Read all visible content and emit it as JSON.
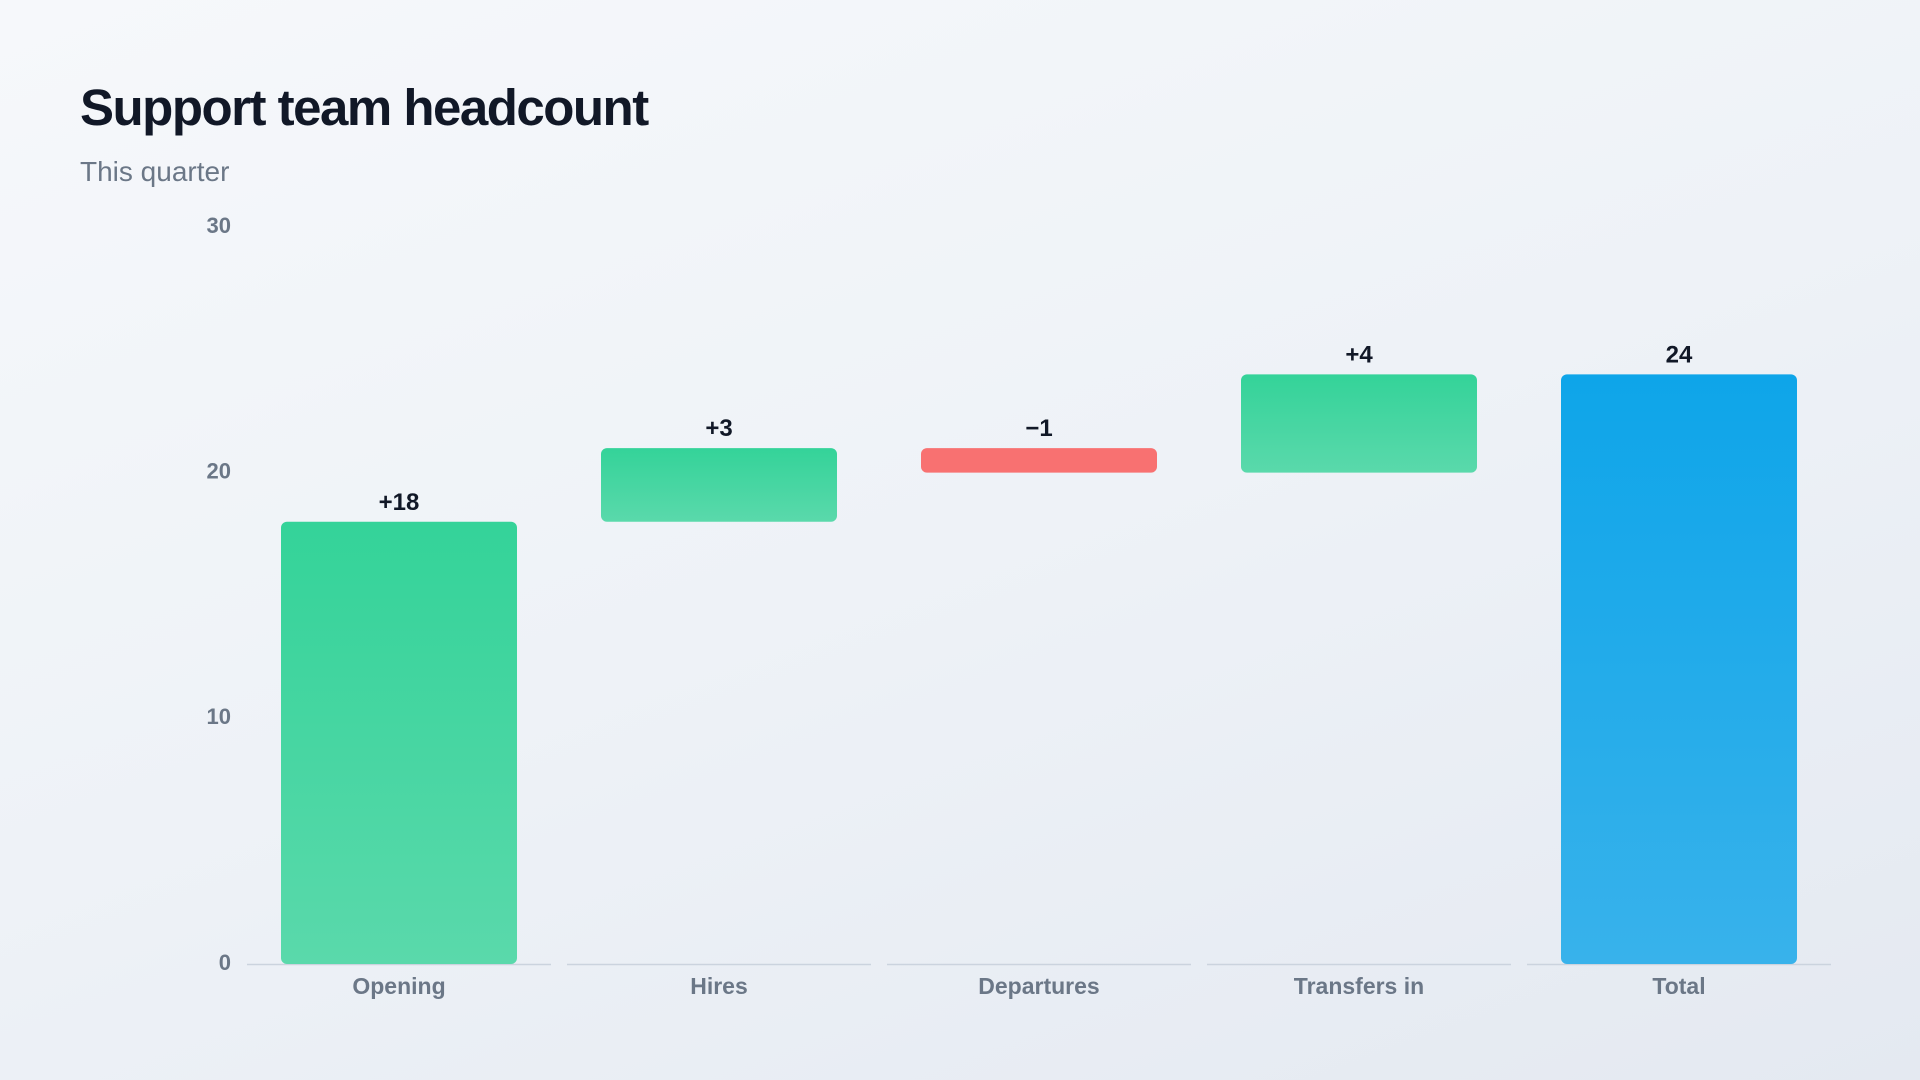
{
  "title": "Support team headcount",
  "subtitle": "This quarter",
  "colors": {
    "increase_top": "#34d399",
    "increase_bottom": "#5ad9ab",
    "decrease": "#f87171",
    "total_top": "#0ea5e9",
    "total_bottom": "#38b2eb",
    "baseline": "#cbd3de",
    "tick_text": "#6b7787",
    "value_text": "#111827"
  },
  "chart_data": {
    "type": "bar",
    "subtype": "waterfall",
    "title": "Support team headcount",
    "subtitle": "This quarter",
    "categories": [
      "Opening",
      "Hires",
      "Departures",
      "Transfers in",
      "Total"
    ],
    "steps": [
      {
        "category": "Opening",
        "value": 18,
        "kind": "increase",
        "start": 0,
        "end": 18,
        "label": "+18"
      },
      {
        "category": "Hires",
        "value": 3,
        "kind": "increase",
        "start": 18,
        "end": 21,
        "label": "+3"
      },
      {
        "category": "Departures",
        "value": -1,
        "kind": "decrease",
        "start": 21,
        "end": 20,
        "label": "−1"
      },
      {
        "category": "Transfers in",
        "value": 4,
        "kind": "increase",
        "start": 20,
        "end": 24,
        "label": "+4"
      },
      {
        "category": "Total",
        "value": 24,
        "kind": "total",
        "start": 0,
        "end": 24,
        "label": "24"
      }
    ],
    "ylim": [
      0,
      30
    ],
    "yticks": [
      0,
      10,
      20,
      30
    ],
    "ytick_labels": [
      "0",
      "10",
      "20",
      "30"
    ],
    "xlabel": "",
    "ylabel": "",
    "grid": false,
    "legend": "none"
  }
}
